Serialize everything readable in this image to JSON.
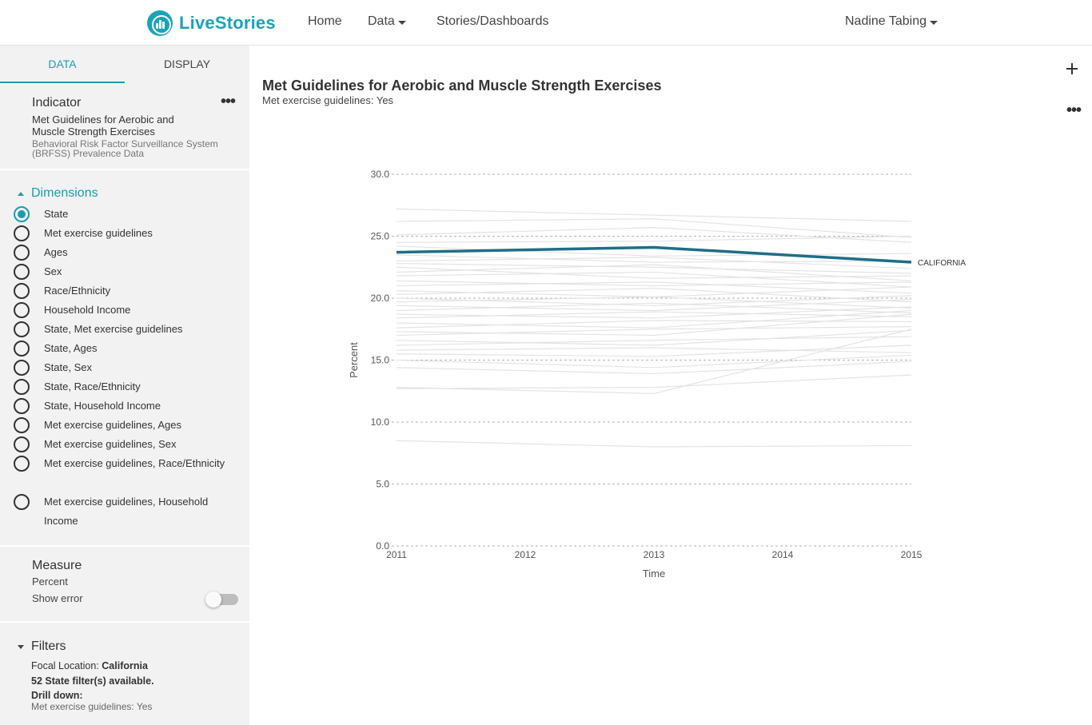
{
  "nav": {
    "brand": "LiveStories",
    "home": "Home",
    "data": "Data",
    "stories": "Stories/Dashboards",
    "user": "Nadine Tabing"
  },
  "sidebar": {
    "tabs": [
      {
        "label": "DATA"
      },
      {
        "label": "DISPLAY"
      }
    ],
    "indicator": {
      "title": "Indicator",
      "name": "Met Guidelines for Aerobic and Muscle Strength Exercises",
      "source": "Behavioral Risk Factor Surveillance System (BRFSS) Prevalence Data"
    },
    "dimensions": {
      "title": "Dimensions",
      "items": [
        {
          "label": "State",
          "checked": true
        },
        {
          "label": "Met exercise guidelines"
        },
        {
          "label": "Ages"
        },
        {
          "label": "Sex"
        },
        {
          "label": "Race/Ethnicity"
        },
        {
          "label": "Household Income"
        },
        {
          "label": "State, Met exercise guidelines"
        },
        {
          "label": "State, Ages"
        },
        {
          "label": "State, Sex"
        },
        {
          "label": "State, Race/Ethnicity"
        },
        {
          "label": "State, Household Income"
        },
        {
          "label": "Met exercise guidelines, Ages"
        },
        {
          "label": "Met exercise guidelines, Sex"
        },
        {
          "label": "Met exercise guidelines, Race/Ethnicity"
        },
        {
          "label": "Met exercise guidelines, Household Income"
        }
      ]
    },
    "measure": {
      "title": "Measure",
      "value": "Percent",
      "show_error_label": "Show error",
      "show_error": false
    },
    "filters": {
      "title": "Filters",
      "focal_label": "Focal Location:",
      "focal_value": "California",
      "available": "52 State filter(s) available.",
      "drill_label": "Drill down:",
      "drill_value": "Met exercise guidelines: Yes"
    }
  },
  "chart": {
    "title": "Met Guidelines for Aerobic and Muscle Strength Exercises",
    "subtitle": "Met exercise guidelines: Yes"
  },
  "chart_data": {
    "type": "line",
    "x": [
      2011,
      2013,
      2015
    ],
    "x_ticks": [
      2011,
      2012,
      2013,
      2014,
      2015
    ],
    "ylim": [
      0,
      30
    ],
    "y_ticks": [
      "0.0",
      "5.0",
      "10.0",
      "15.0",
      "20.0",
      "25.0",
      "30.0"
    ],
    "ylabel": "Percent",
    "xlabel": "Time",
    "grid": true,
    "colors": {
      "focal": "#1f6e87",
      "background": "#e3e3e3"
    },
    "focal_series": {
      "name": "CALIFORNIA",
      "values": [
        23.7,
        24.1,
        22.9
      ]
    },
    "background_series": [
      [
        27.2,
        26.7,
        26.2
      ],
      [
        26.2,
        26.4,
        24.9
      ],
      [
        25.1,
        25.7,
        24.5
      ],
      [
        24.5,
        24.6,
        25.0
      ],
      [
        24.2,
        23.4,
        23.6
      ],
      [
        23.5,
        22.9,
        23.0
      ],
      [
        23.0,
        23.3,
        22.4
      ],
      [
        22.8,
        22.5,
        22.0
      ],
      [
        22.5,
        21.6,
        21.8
      ],
      [
        22.1,
        22.7,
        21.4
      ],
      [
        21.8,
        22.1,
        20.9
      ],
      [
        21.4,
        21.0,
        21.3
      ],
      [
        21.0,
        21.3,
        20.4
      ],
      [
        20.6,
        20.1,
        20.9
      ],
      [
        20.3,
        20.8,
        19.7
      ],
      [
        20.0,
        19.4,
        20.2
      ],
      [
        19.7,
        20.1,
        19.2
      ],
      [
        19.4,
        19.0,
        19.9
      ],
      [
        19.0,
        19.6,
        18.8
      ],
      [
        18.7,
        18.4,
        19.3
      ],
      [
        18.4,
        18.9,
        18.5
      ],
      [
        18.0,
        17.6,
        19.0
      ],
      [
        17.6,
        18.2,
        18.1
      ],
      [
        17.3,
        17.0,
        18.7
      ],
      [
        17.0,
        17.5,
        17.7
      ],
      [
        16.6,
        16.2,
        17.4
      ],
      [
        16.2,
        16.6,
        16.9
      ],
      [
        15.8,
        16.0,
        15.6
      ],
      [
        15.5,
        15.3,
        16.2
      ],
      [
        15.0,
        14.4,
        15.4
      ],
      [
        14.4,
        13.9,
        14.9
      ],
      [
        12.8,
        12.3,
        17.5
      ],
      [
        12.7,
        12.8,
        13.8
      ],
      [
        8.5,
        8.0,
        8.1
      ]
    ]
  }
}
